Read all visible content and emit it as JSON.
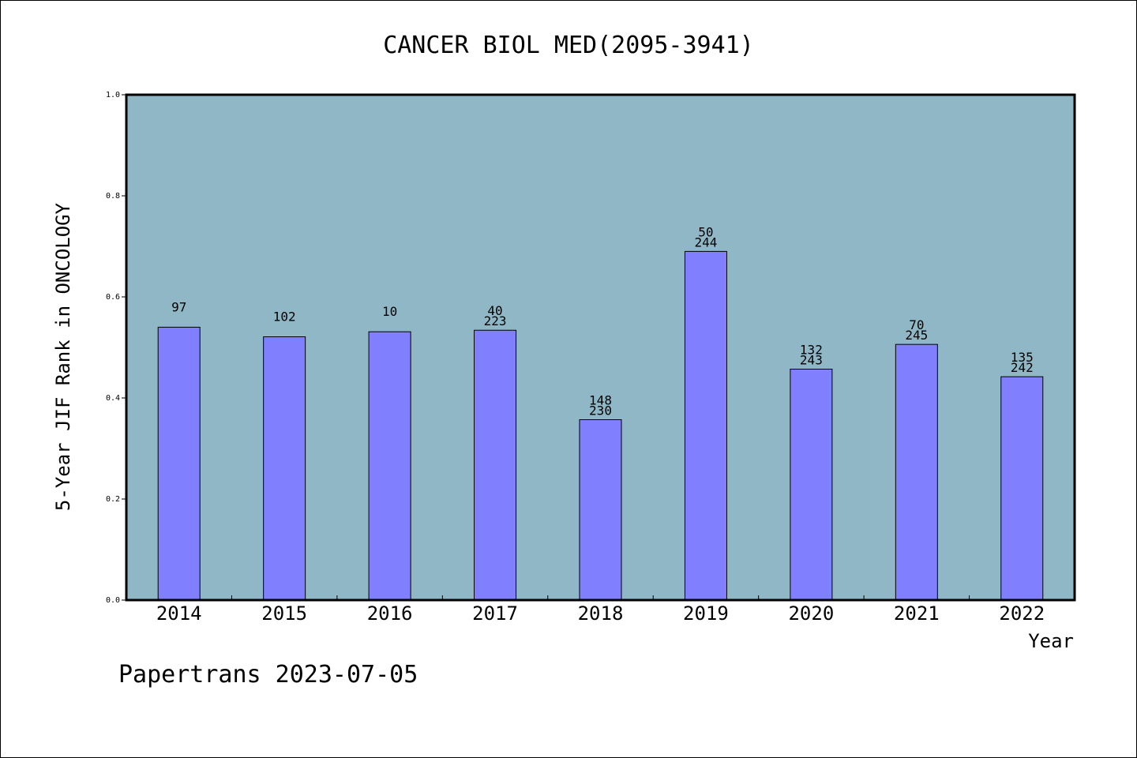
{
  "chart_data": {
    "type": "bar",
    "title": "CANCER BIOL MED(2095-3941)",
    "xlabel": "Year",
    "ylabel": "5-Year JIF Rank in ONCOLOGY",
    "categories": [
      "2014",
      "2015",
      "2016",
      "2017",
      "2018",
      "2019",
      "2020",
      "2021",
      "2022"
    ],
    "values": [
      0.54,
      0.521,
      0.531,
      0.534,
      0.357,
      0.69,
      0.457,
      0.506,
      0.442
    ],
    "data_labels": [
      {
        "rank": "97",
        "total": ""
      },
      {
        "rank": "102",
        "total": ""
      },
      {
        "rank": "10",
        "total": ""
      },
      {
        "rank": "40",
        "total": "223"
      },
      {
        "rank": "148",
        "total": "230"
      },
      {
        "rank": "50",
        "total": "244"
      },
      {
        "rank": "132",
        "total": "243"
      },
      {
        "rank": "70",
        "total": "245"
      },
      {
        "rank": "135",
        "total": "242"
      }
    ],
    "ylim": [
      0,
      1.0
    ],
    "yticks": [
      "0.0",
      "0.2",
      "0.4",
      "0.6",
      "0.8",
      "1.0"
    ],
    "grid": false,
    "colors": {
      "plot_background": "#8fb7c6",
      "bar_fill": "#8080ff",
      "bar_stroke": "#000000"
    }
  },
  "footer": "Papertrans 2023-07-05"
}
